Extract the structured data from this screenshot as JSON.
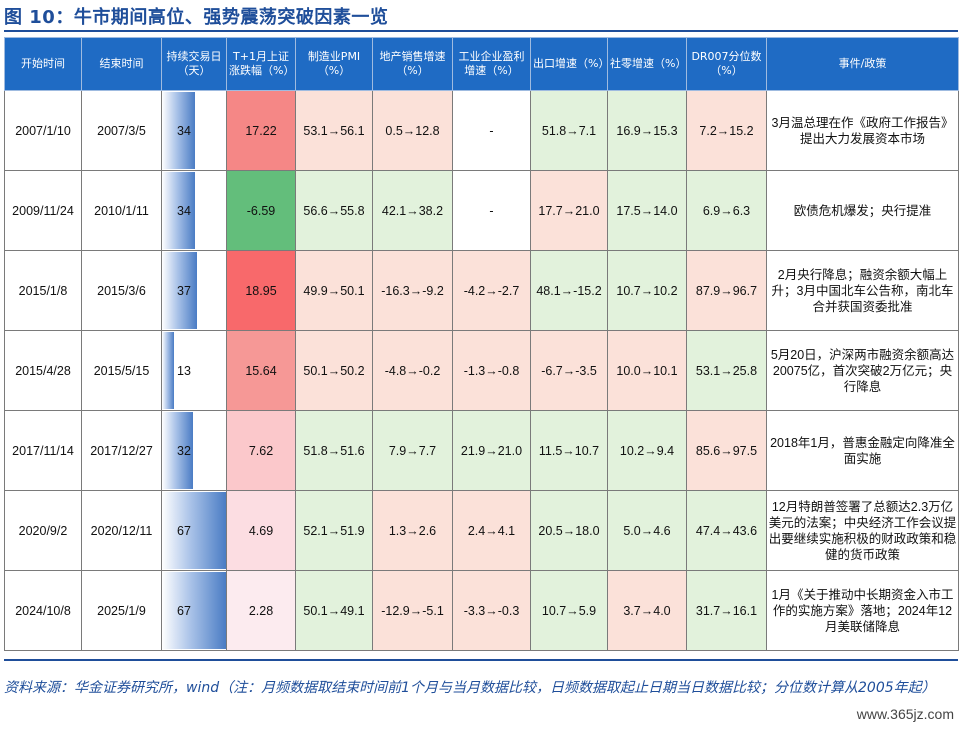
{
  "title": "图 10：牛市期间高位、强势震荡突破因素一览",
  "headers": [
    "开始时间",
    "结束时间",
    "持续交易日（天）",
    "T+1月上证涨跌幅（%）",
    "制造业PMI（%）",
    "地产销售增速（%）",
    "工业企业盈利增速（%）",
    "出口增速（%）",
    "社零增速（%）",
    "DR007分位数（%）",
    "事件/政策"
  ],
  "rows": [
    {
      "start": "2007/1/10",
      "end": "2007/3/5",
      "days": "34",
      "days_frac": 0.51,
      "t1": "17.22",
      "t1_color": "#f58786",
      "pmi": "53.1→56.1",
      "pmi_color": "#fbe1d9",
      "estate": "0.5→12.8",
      "estate_color": "#fbe1d9",
      "profit": "-",
      "profit_color": "#ffffff",
      "export": "51.8→7.1",
      "export_color": "#e2f2dc",
      "retail": "16.9→15.3",
      "retail_color": "#e2f2dc",
      "dr007": "7.2→15.2",
      "dr007_color": "#fbe1d9",
      "event": "3月温总理在作《政府工作报告》提出大力发展资本市场"
    },
    {
      "start": "2009/11/24",
      "end": "2010/1/11",
      "days": "34",
      "days_frac": 0.51,
      "t1": "-6.59",
      "t1_color": "#63be7b",
      "pmi": "56.6→55.8",
      "pmi_color": "#e2f2dc",
      "estate": "42.1→38.2",
      "estate_color": "#e2f2dc",
      "profit": "-",
      "profit_color": "#ffffff",
      "export": "17.7→21.0",
      "export_color": "#fbe1d9",
      "retail": "17.5→14.0",
      "retail_color": "#e2f2dc",
      "dr007": "6.9→6.3",
      "dr007_color": "#e2f2dc",
      "event": "欧债危机爆发；央行提准"
    },
    {
      "start": "2015/1/8",
      "end": "2015/3/6",
      "days": "37",
      "days_frac": 0.55,
      "t1": "18.95",
      "t1_color": "#f8696b",
      "pmi": "49.9→50.1",
      "pmi_color": "#fbe1d9",
      "estate": "-16.3→-9.2",
      "estate_color": "#fbe1d9",
      "profit": "-4.2→-2.7",
      "profit_color": "#fbe1d9",
      "export": "48.1→-15.2",
      "export_color": "#e2f2dc",
      "retail": "10.7→10.2",
      "retail_color": "#e2f2dc",
      "dr007": "87.9→96.7",
      "dr007_color": "#fbe1d9",
      "event": "2月央行降息；融资余额大幅上升；3月中国北车公告称，南北车合并获国资委批准"
    },
    {
      "start": "2015/4/28",
      "end": "2015/5/15",
      "days": "13",
      "days_frac": 0.19,
      "t1": "15.64",
      "t1_color": "#f69896",
      "pmi": "50.1→50.2",
      "pmi_color": "#fbe1d9",
      "estate": "-4.8→-0.2",
      "estate_color": "#fbe1d9",
      "profit": "-1.3→-0.8",
      "profit_color": "#fbe1d9",
      "export": "-6.7→-3.5",
      "export_color": "#fbe1d9",
      "retail": "10.0→10.1",
      "retail_color": "#fbe1d9",
      "dr007": "53.1→25.8",
      "dr007_color": "#e2f2dc",
      "event": "5月20日，沪深两市融资余额高达20075亿，首次突破2万亿元；央行降息"
    },
    {
      "start": "2017/11/14",
      "end": "2017/12/27",
      "days": "32",
      "days_frac": 0.48,
      "t1": "7.62",
      "t1_color": "#fbc8cb",
      "pmi": "51.8→51.6",
      "pmi_color": "#e2f2dc",
      "estate": "7.9→7.7",
      "estate_color": "#e2f2dc",
      "profit": "21.9→21.0",
      "profit_color": "#e2f2dc",
      "export": "11.5→10.7",
      "export_color": "#e2f2dc",
      "retail": "10.2→9.4",
      "retail_color": "#e2f2dc",
      "dr007": "85.6→97.5",
      "dr007_color": "#fbe1d9",
      "event": "2018年1月，普惠金融定向降准全面实施"
    },
    {
      "start": "2020/9/2",
      "end": "2020/12/11",
      "days": "67",
      "days_frac": 1.0,
      "t1": "4.69",
      "t1_color": "#fcdde2",
      "pmi": "52.1→51.9",
      "pmi_color": "#e2f2dc",
      "estate": "1.3→2.6",
      "estate_color": "#fbe1d9",
      "profit": "2.4→4.1",
      "profit_color": "#fbe1d9",
      "export": "20.5→18.0",
      "export_color": "#e2f2dc",
      "retail": "5.0→4.6",
      "retail_color": "#e2f2dc",
      "dr007": "47.4→43.6",
      "dr007_color": "#e2f2dc",
      "event": "12月特朗普签署了总额达2.3万亿美元的法案；中央经济工作会议提出要继续实施积极的财政政策和稳健的货币政策"
    },
    {
      "start": "2024/10/8",
      "end": "2025/1/9",
      "days": "67",
      "days_frac": 1.0,
      "t1": "2.28",
      "t1_color": "#fcebef",
      "pmi": "50.1→49.1",
      "pmi_color": "#e2f2dc",
      "estate": "-12.9→-5.1",
      "estate_color": "#fbe1d9",
      "profit": "-3.3→-0.3",
      "profit_color": "#fbe1d9",
      "export": "10.7→5.9",
      "export_color": "#e2f2dc",
      "retail": "3.7→4.0",
      "retail_color": "#fbe1d9",
      "dr007": "31.7→16.1",
      "dr007_color": "#e2f2dc",
      "event": "1月《关于推动中长期资金入市工作的实施方案》落地；2024年12月美联储降息"
    }
  ],
  "source": "资料来源：华金证券研究所，wind（注：月频数据取结束时间前1个月与当月数据比较，日频数据取起止日期当日数据比较；分位数计算从2005年起）",
  "watermark": "www.365jz.com"
}
